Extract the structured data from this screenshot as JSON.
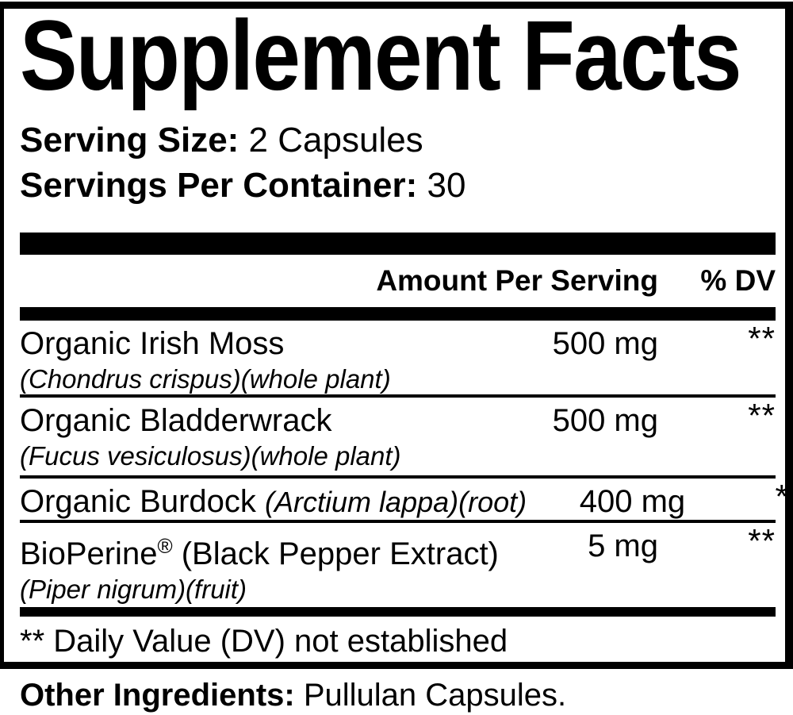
{
  "colors": {
    "text": "#000000",
    "background": "#ffffff"
  },
  "label": {
    "title": "Supplement Facts",
    "serving_size": {
      "label": "Serving Size:",
      "value": "2 Capsules"
    },
    "servings_per_container": {
      "label": "Servings Per Container:",
      "value": "30"
    },
    "header": {
      "amount": "Amount Per Serving",
      "dv": "% DV"
    },
    "rows": [
      {
        "name": "Organic Irish Moss",
        "botanical": "(Chondrus crispus)(whole plant)",
        "amount": "500 mg",
        "dv": "**"
      },
      {
        "name": "Organic Bladderwrack",
        "botanical": "(Fucus vesiculosus)(whole plant)",
        "amount": "500 mg",
        "dv": "**"
      },
      {
        "name": "Organic Burdock",
        "name_italic": "(Arctium lappa)(root)",
        "amount": "400 mg",
        "dv": "**"
      },
      {
        "name": "BioPerine",
        "trademark": "®",
        "name_paren": "(Black Pepper Extract)",
        "botanical": "(Piper nigrum)(fruit)",
        "amount": "5 mg",
        "dv": "**"
      }
    ],
    "footnote": "** Daily Value (DV) not established",
    "other_ingredients": {
      "label": "Other Ingredients:",
      "value": "Pullulan Capsules."
    }
  }
}
